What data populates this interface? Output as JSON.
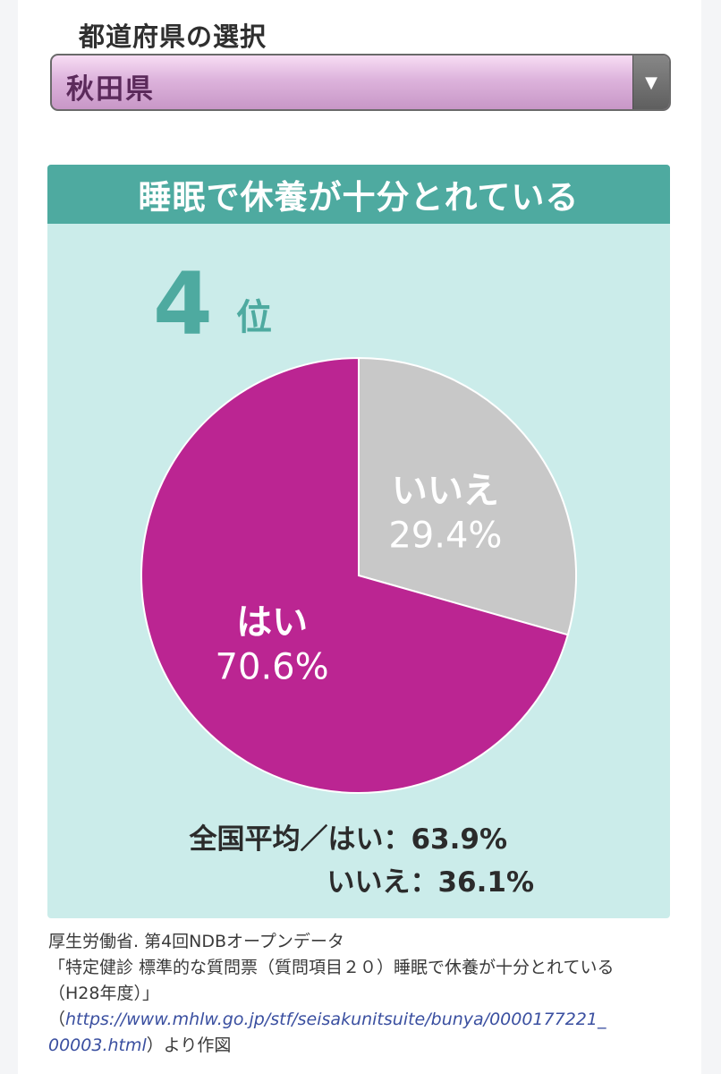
{
  "selector": {
    "label": "都道府県の選択",
    "value": "秋田県"
  },
  "card": {
    "title": "睡眠で休養が十分とれている",
    "rank": "4",
    "rank_suffix": "位",
    "national_avg": {
      "yes_text": "全国平均／はい：63.9%",
      "no_text": "いいえ：36.1%"
    }
  },
  "source": {
    "line1": "厚生労働省. 第4回NDBオープンデータ",
    "line2": "「特定健診 標準的な質問票（質問項目２０）睡眠で休養が十分とれている",
    "line3": "（H28年度）」",
    "line4_paren": "（",
    "url_part1": "https://www.mhlw.go.jp/stf/seisakunitsuite/bunya/0000177221_",
    "url_part2": "00003.html",
    "line5_suffix": "）より作図"
  },
  "colors": {
    "yes": "#bb2592",
    "no": "#c8c8c8",
    "accent": "#4eaaa0",
    "card_bg": "#cbecea"
  },
  "chart_data": {
    "type": "pie",
    "slices": [
      {
        "label": "いいえ",
        "value": 29.4,
        "value_label": "29.4%",
        "color": "#c8c8c8"
      },
      {
        "label": "はい",
        "value": 70.6,
        "value_label": "70.6%",
        "color": "#bb2592"
      }
    ]
  }
}
